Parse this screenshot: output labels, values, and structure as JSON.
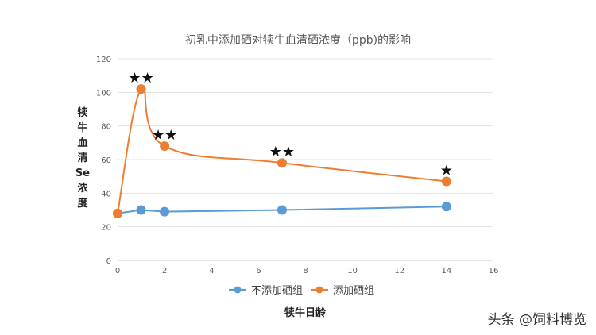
{
  "chart_data": {
    "type": "line",
    "title": "初乳中添加硒对犊牛血清硒浓度（ppb)的影响",
    "xlabel": "犊牛日龄",
    "ylabel": "犊牛血清Se浓度",
    "xlim": [
      0,
      16
    ],
    "ylim": [
      0,
      120
    ],
    "x_ticks": [
      0,
      2,
      4,
      6,
      8,
      10,
      12,
      14,
      16
    ],
    "y_ticks": [
      0,
      20,
      40,
      60,
      80,
      100,
      120
    ],
    "grid": "horizontal",
    "legend_position": "bottom",
    "series": [
      {
        "name": "不添加硒组",
        "color": "#5b9bd5",
        "smooth": false,
        "points": [
          [
            0,
            28
          ],
          [
            1,
            30
          ],
          [
            2,
            29
          ],
          [
            7,
            30
          ],
          [
            14,
            32
          ]
        ]
      },
      {
        "name": "添加硒组",
        "color": "#ed7d31",
        "smooth": true,
        "points": [
          [
            0,
            28
          ],
          [
            1,
            102
          ],
          [
            2,
            68
          ],
          [
            7,
            58
          ],
          [
            14,
            47
          ]
        ]
      }
    ],
    "annotations": [
      {
        "x": 1,
        "y": 102,
        "text": "★★"
      },
      {
        "x": 2,
        "y": 68,
        "text": "★★"
      },
      {
        "x": 7,
        "y": 58,
        "text": "★★"
      },
      {
        "x": 14,
        "y": 47,
        "text": "★"
      }
    ]
  },
  "watermark": "头条 @饲料博览"
}
